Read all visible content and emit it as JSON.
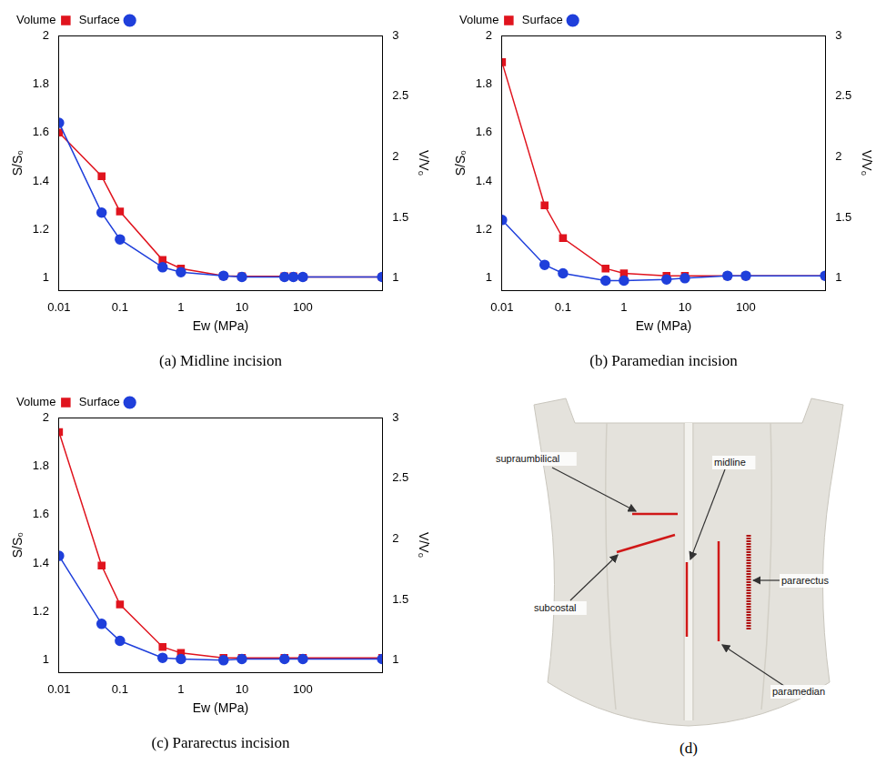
{
  "chart_data": [
    {
      "type": "line",
      "title": "(a) Midline incision",
      "x": [
        0.01,
        0.05,
        0.1,
        0.5,
        1,
        5,
        10,
        50,
        70,
        100,
        2000
      ],
      "series": [
        {
          "name": "Surface",
          "color": "#1f3fdb",
          "marker": "circle",
          "line_style": "solid",
          "axis": "y",
          "values": [
            1.64,
            1.27,
            1.16,
            1.045,
            1.025,
            1.01,
            1.005,
            1.005,
            1.005,
            1.005,
            1.005
          ]
        },
        {
          "name": "Volume",
          "color": "#e0141e",
          "marker": "square",
          "line_style": "solid",
          "axis": "y2",
          "values": [
            2.2,
            1.84,
            1.55,
            1.15,
            1.08,
            1.02,
            1.015,
            1.015,
            1.015,
            1.01,
            1.01
          ]
        }
      ],
      "xlabel": "Ew (MPa)",
      "ylabel": "S/S₀",
      "y2label": "V/V₀",
      "log": "x",
      "xlim": [
        0.01,
        2000
      ],
      "xticks": [
        0.01,
        0.1,
        1,
        10,
        100
      ],
      "ylim": [
        0.95,
        2
      ],
      "yticks": [
        1,
        1.2,
        1.4,
        1.6,
        1.8,
        2
      ],
      "y2lim": [
        0.9,
        3
      ],
      "y2ticks": [
        1,
        1.5,
        2,
        2.5,
        3
      ],
      "grid": false,
      "legend": "top right"
    },
    {
      "type": "line",
      "title": "(b) Paramedian incision",
      "x": [
        0.01,
        0.05,
        0.1,
        0.5,
        1,
        5,
        10,
        50,
        100,
        2000
      ],
      "series": [
        {
          "name": "Surface",
          "color": "#1f3fdb",
          "marker": "circle",
          "line_style": "solid",
          "axis": "y",
          "values": [
            1.24,
            1.055,
            1.02,
            0.99,
            0.99,
            0.995,
            1.0,
            1.01,
            1.01,
            1.01
          ]
        },
        {
          "name": "Volume",
          "color": "#e0141e",
          "marker": "square",
          "line_style": "solid",
          "axis": "y2",
          "values": [
            2.78,
            1.6,
            1.33,
            1.08,
            1.04,
            1.02,
            1.02,
            1.02,
            1.02,
            1.02
          ]
        }
      ],
      "xlabel": "Ew (MPa)",
      "ylabel": "S/S₀",
      "y2label": "V/V₀",
      "log": "x",
      "xlim": [
        0.01,
        2000
      ],
      "xticks": [
        0.01,
        0.1,
        1,
        10,
        100
      ],
      "ylim": [
        0.95,
        2
      ],
      "yticks": [
        1,
        1.2,
        1.4,
        1.6,
        1.8,
        2
      ],
      "y2lim": [
        0.9,
        3
      ],
      "y2ticks": [
        1,
        1.5,
        2,
        2.5,
        3
      ],
      "grid": false,
      "legend": "top right"
    },
    {
      "type": "line",
      "title": "(c) Pararectus incision",
      "x": [
        0.01,
        0.05,
        0.1,
        0.5,
        1,
        5,
        10,
        50,
        100,
        2000
      ],
      "series": [
        {
          "name": "Surface",
          "color": "#1f3fdb",
          "marker": "circle",
          "line_style": "solid",
          "axis": "y",
          "values": [
            1.43,
            1.15,
            1.08,
            1.01,
            1.005,
            1.0,
            1.005,
            1.005,
            1.005,
            1.005
          ]
        },
        {
          "name": "Volume",
          "color": "#e0141e",
          "marker": "square",
          "line_style": "solid",
          "axis": "y2",
          "values": [
            2.88,
            1.78,
            1.46,
            1.11,
            1.06,
            1.02,
            1.02,
            1.02,
            1.02,
            1.02
          ]
        }
      ],
      "xlabel": "Ew (MPa)",
      "ylabel": "S/S₀",
      "y2label": "V/V₀",
      "log": "x",
      "xlim": [
        0.01,
        2000
      ],
      "xticks": [
        0.01,
        0.1,
        1,
        10,
        100
      ],
      "ylim": [
        0.95,
        2
      ],
      "yticks": [
        1,
        1.2,
        1.4,
        1.6,
        1.8,
        2
      ],
      "y2lim": [
        0.9,
        3
      ],
      "y2ticks": [
        1,
        1.5,
        2,
        2.5,
        3
      ],
      "grid": false,
      "legend": "top right"
    }
  ],
  "diagram": {
    "caption": "(d)",
    "labels": [
      "supraumbilical",
      "midline",
      "subcostal",
      "pararectus",
      "paramedian"
    ]
  }
}
